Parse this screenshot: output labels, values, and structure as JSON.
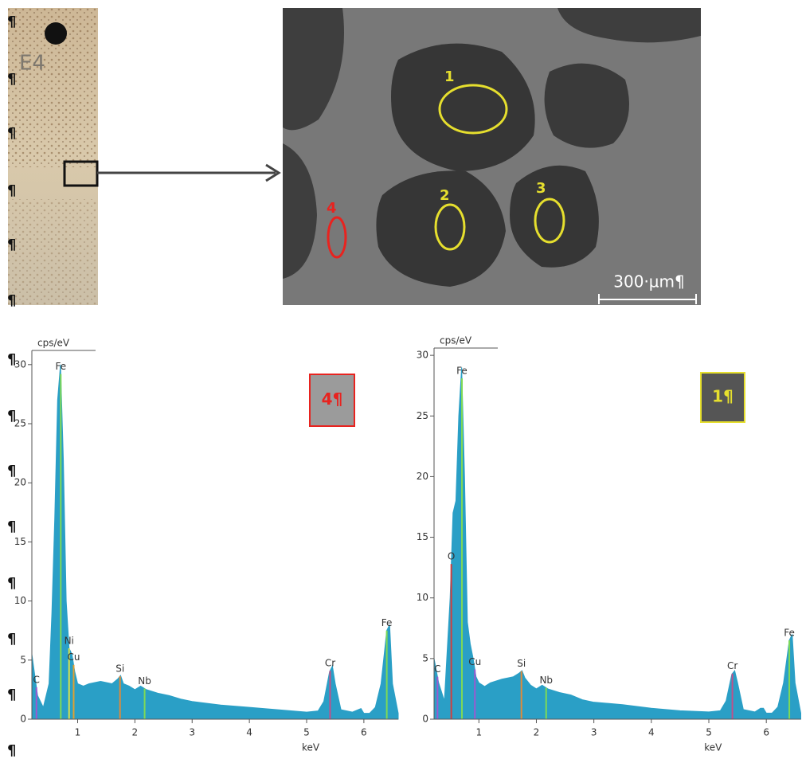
{
  "photo": {
    "label": "E4"
  },
  "sem": {
    "regions": [
      {
        "label": "1",
        "color": "#e6df2e"
      },
      {
        "label": "2",
        "color": "#e6df2e"
      },
      {
        "label": "3",
        "color": "#e6df2e"
      },
      {
        "label": "4",
        "color": "#e8231f"
      }
    ],
    "scale_bar": "300·µm¶"
  },
  "margin_marks": [
    "¶",
    "¶",
    "¶",
    "¶",
    "¶",
    "¶",
    "¶",
    "¶",
    "¶",
    "¶",
    "¶",
    "¶",
    "¶",
    "¶"
  ],
  "chart_data": [
    {
      "type": "area",
      "y_label": "cps/eV",
      "x_label": "keV",
      "box_label": "4¶",
      "box_color": "#e8231f",
      "box_fill": "#9b9b9b",
      "color": "#2a9fc6",
      "x": [
        0.2,
        0.3,
        0.4,
        0.5,
        0.55,
        0.6,
        0.65,
        0.7,
        0.75,
        0.8,
        0.85,
        0.9,
        0.95,
        1.0,
        1.1,
        1.2,
        1.4,
        1.6,
        1.7,
        1.75,
        1.8,
        1.9,
        2.0,
        2.1,
        2.2,
        2.4,
        2.6,
        2.8,
        3.0,
        3.5,
        4.0,
        4.5,
        5.0,
        5.2,
        5.3,
        5.4,
        5.45,
        5.5,
        5.6,
        5.8,
        5.9,
        5.95,
        6.0,
        6.1,
        6.2,
        6.3,
        6.4,
        6.45,
        6.5,
        6.6
      ],
      "values": [
        5.5,
        2,
        1,
        3,
        9,
        17,
        27,
        30,
        22,
        10,
        6,
        5.5,
        4,
        3,
        2.8,
        3,
        3.2,
        3,
        3.4,
        3.7,
        3,
        2.8,
        2.5,
        2.8,
        2.5,
        2.2,
        2,
        1.7,
        1.5,
        1.2,
        1.0,
        0.8,
        0.6,
        0.7,
        1.5,
        4,
        4.5,
        3,
        0.8,
        0.6,
        0.8,
        0.9,
        0.5,
        0.5,
        1,
        3,
        7.5,
        8,
        3,
        0.5
      ],
      "xlim": [
        0.2,
        6.6
      ],
      "ylim": [
        0,
        31.2
      ],
      "xticks": [
        1,
        2,
        3,
        4,
        5,
        6
      ],
      "yticks": [
        0,
        5,
        10,
        15,
        20,
        25,
        30
      ],
      "peaks": [
        {
          "label": "C",
          "x": 0.28,
          "color": "#9b59d0"
        },
        {
          "label": "Fe",
          "x": 0.705,
          "color": "#7ed957"
        },
        {
          "label": "Ni",
          "x": 0.85,
          "color": "#d8e04a"
        },
        {
          "label": "Cu",
          "x": 0.93,
          "color": "#e0a030"
        },
        {
          "label": "Si",
          "x": 1.74,
          "color": "#e08a3a"
        },
        {
          "label": "Nb",
          "x": 2.17,
          "color": "#7ed957"
        },
        {
          "label": "Cr",
          "x": 5.41,
          "color": "#c0508a"
        },
        {
          "label": "Fe",
          "x": 6.4,
          "color": "#7ed957"
        }
      ]
    },
    {
      "type": "area",
      "y_label": "cps/eV",
      "x_label": "keV",
      "box_label": "1¶",
      "box_color": "#e6df2e",
      "box_fill": "#555555",
      "color": "#2a9fc6",
      "x": [
        0.22,
        0.3,
        0.4,
        0.5,
        0.55,
        0.6,
        0.65,
        0.7,
        0.75,
        0.8,
        0.85,
        0.9,
        0.95,
        1.0,
        1.1,
        1.2,
        1.4,
        1.6,
        1.7,
        1.75,
        1.8,
        1.9,
        2.0,
        2.1,
        2.2,
        2.4,
        2.6,
        2.8,
        3.0,
        3.5,
        4.0,
        4.5,
        5.0,
        5.2,
        5.3,
        5.4,
        5.45,
        5.5,
        5.6,
        5.8,
        5.9,
        5.95,
        6.0,
        6.1,
        6.2,
        6.3,
        6.4,
        6.45,
        6.5,
        6.6
      ],
      "values": [
        5,
        3,
        1.5,
        10,
        17,
        18,
        25,
        29,
        20,
        8,
        6.2,
        5,
        3.5,
        3,
        2.7,
        3,
        3.3,
        3.5,
        3.8,
        4,
        3.4,
        2.8,
        2.5,
        2.8,
        2.5,
        2.2,
        2,
        1.6,
        1.4,
        1.2,
        0.9,
        0.7,
        0.6,
        0.7,
        1.5,
        3.7,
        4,
        3,
        0.8,
        0.6,
        0.9,
        0.9,
        0.5,
        0.5,
        1,
        3,
        6.5,
        7,
        3,
        0.5
      ],
      "xlim": [
        0.22,
        6.6
      ],
      "ylim": [
        0,
        30.6
      ],
      "xticks": [
        1,
        2,
        3,
        4,
        5,
        6
      ],
      "yticks": [
        0,
        5,
        10,
        15,
        20,
        25,
        30
      ],
      "peaks": [
        {
          "label": "C",
          "x": 0.28,
          "color": "#9b59d0"
        },
        {
          "label": "O",
          "x": 0.52,
          "color": "#d04040"
        },
        {
          "label": "Fe",
          "x": 0.705,
          "color": "#7ed957"
        },
        {
          "label": "Cu",
          "x": 0.93,
          "color": "#9b59d0"
        },
        {
          "label": "Si",
          "x": 1.74,
          "color": "#e08a3a"
        },
        {
          "label": "Nb",
          "x": 2.17,
          "color": "#7ed957"
        },
        {
          "label": "Cr",
          "x": 5.41,
          "color": "#c0508a"
        },
        {
          "label": "Fe",
          "x": 6.4,
          "color": "#7ed957"
        }
      ]
    }
  ]
}
